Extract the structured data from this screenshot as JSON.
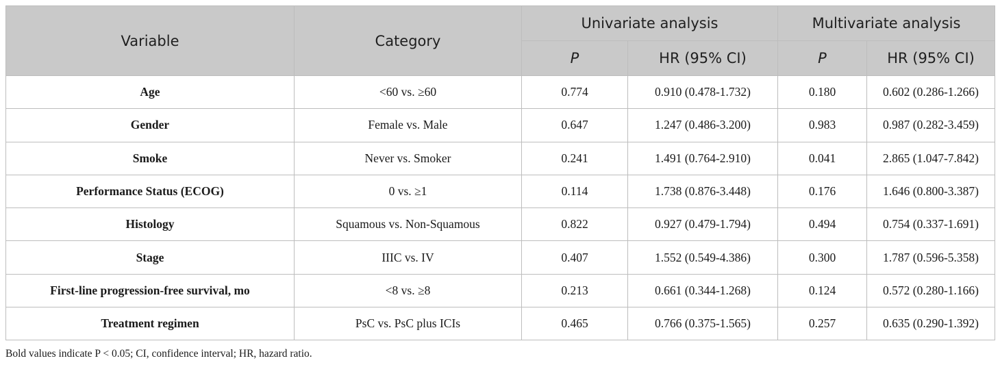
{
  "header": {
    "variable": "Variable",
    "category": "Category",
    "univariate": "Univariate analysis",
    "multivariate": "Multivariate analysis",
    "p": "P",
    "hr": "HR (95% CI)"
  },
  "rows": [
    {
      "variable": "Age",
      "category": "<60 vs. ≥60",
      "uni_p": "0.774",
      "uni_hr": "0.910 (0.478-1.732)",
      "multi_p": "0.180",
      "multi_hr": "0.602 (0.286-1.266)"
    },
    {
      "variable": "Gender",
      "category": "Female vs. Male",
      "uni_p": "0.647",
      "uni_hr": "1.247 (0.486-3.200)",
      "multi_p": "0.983",
      "multi_hr": "0.987 (0.282-3.459)"
    },
    {
      "variable": "Smoke",
      "category": "Never vs. Smoker",
      "uni_p": "0.241",
      "uni_hr": "1.491 (0.764-2.910)",
      "multi_p": "0.041",
      "multi_hr": "2.865 (1.047-7.842)"
    },
    {
      "variable": "Performance Status (ECOG)",
      "category": "0 vs. ≥1",
      "uni_p": "0.114",
      "uni_hr": "1.738 (0.876-3.448)",
      "multi_p": "0.176",
      "multi_hr": "1.646 (0.800-3.387)"
    },
    {
      "variable": "Histology",
      "category": "Squamous vs. Non-Squamous",
      "uni_p": "0.822",
      "uni_hr": "0.927 (0.479-1.794)",
      "multi_p": "0.494",
      "multi_hr": "0.754 (0.337-1.691)"
    },
    {
      "variable": "Stage",
      "category": "IIIC vs. IV",
      "uni_p": "0.407",
      "uni_hr": "1.552 (0.549-4.386)",
      "multi_p": "0.300",
      "multi_hr": "1.787 (0.596-5.358)"
    },
    {
      "variable": "First-line progression-free survival, mo",
      "category": "<8 vs. ≥8",
      "uni_p": "0.213",
      "uni_hr": "0.661 (0.344-1.268)",
      "multi_p": "0.124",
      "multi_hr": "0.572 (0.280-1.166)"
    },
    {
      "variable": "Treatment regimen",
      "category": "PsC vs. PsC plus ICIs",
      "uni_p": "0.465",
      "uni_hr": "0.766 (0.375-1.565)",
      "multi_p": "0.257",
      "multi_hr": "0.635 (0.290-1.392)"
    }
  ],
  "footnote": "Bold values indicate P < 0.05; CI, confidence interval; HR, hazard ratio.",
  "colors": {
    "header_bg": "#c9c9c9",
    "border": "#bdbdbd"
  }
}
